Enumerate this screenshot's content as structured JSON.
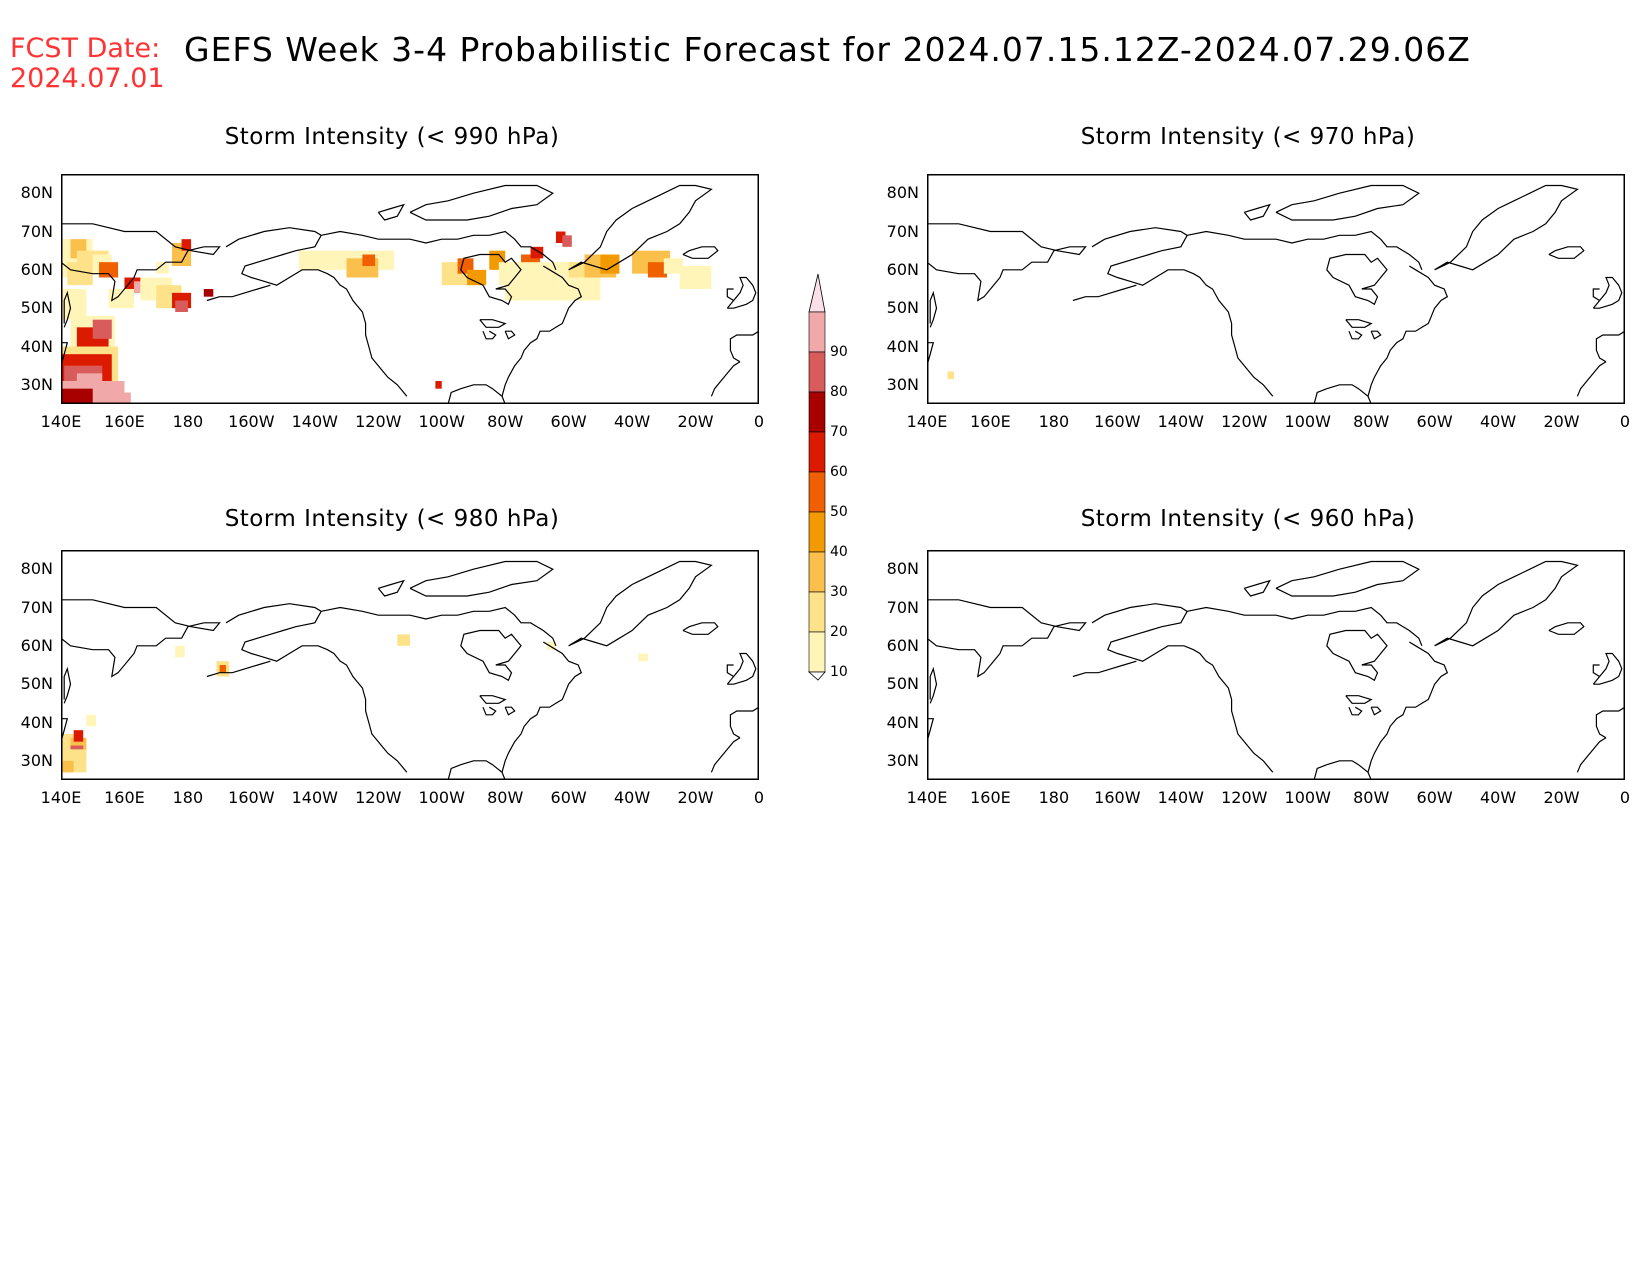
{
  "header": {
    "fcst_label": "FCST Date:",
    "fcst_date": "2024.07.01",
    "title": "GEFS Week 3-4 Probabilistic Forecast for 2024.07.15.12Z-2024.07.29.06Z"
  },
  "axes": {
    "lat_labels": [
      "80N",
      "70N",
      "60N",
      "50N",
      "40N",
      "30N"
    ],
    "lon_labels": [
      "140E",
      "160E",
      "180",
      "160W",
      "140W",
      "120W",
      "100W",
      "80W",
      "60W",
      "40W",
      "20W",
      "0"
    ]
  },
  "panels": [
    {
      "id": "p990",
      "title": "Storm Intensity (< 990 hPa)"
    },
    {
      "id": "p970",
      "title": "Storm Intensity (< 970 hPa)"
    },
    {
      "id": "p980",
      "title": "Storm Intensity (< 980 hPa)"
    },
    {
      "id": "p960",
      "title": "Storm Intensity (< 960 hPa)"
    }
  ],
  "colorbar": {
    "levels": [
      "10",
      "20",
      "30",
      "40",
      "50",
      "60",
      "70",
      "80",
      "90"
    ],
    "colors": [
      "#fff5b8",
      "#fde28a",
      "#fbbf4c",
      "#f39a00",
      "#f06000",
      "#dc1a00",
      "#a80000",
      "#d95c5c",
      "#f0a8a8",
      "#fde0e6"
    ]
  }
}
